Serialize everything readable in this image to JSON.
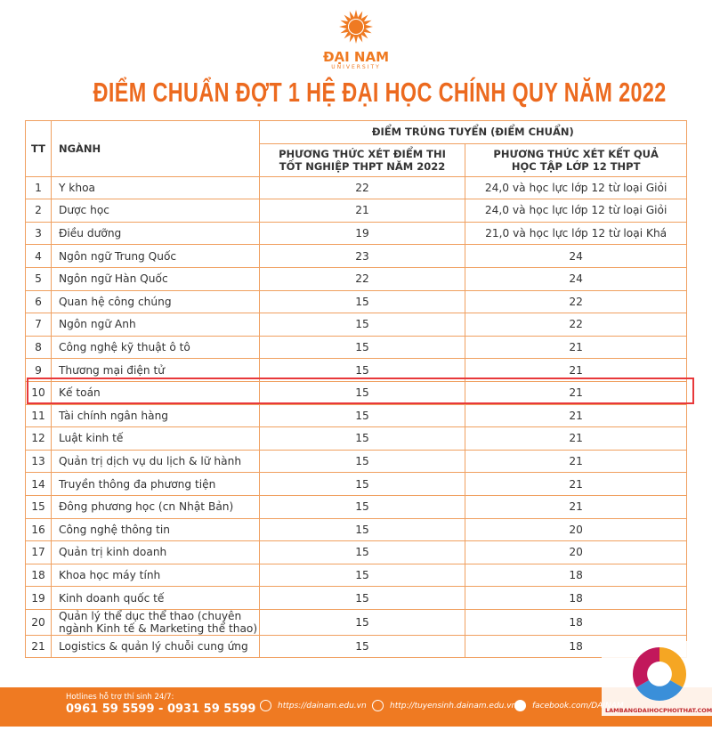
{
  "logo": {
    "name": "ĐẠI NAM",
    "sub": "UNIVERSITY"
  },
  "title": "ĐIỂM CHUẨN ĐỢT 1 HỆ ĐẠI HỌC CHÍNH QUY NĂM 2022",
  "table": {
    "headers": {
      "tt": "TT",
      "major": "NGÀNH",
      "group": "ĐIỂM TRÚNG TUYỂN (ĐIỂM CHUẨN)",
      "col1": [
        "PHƯƠNG THỨC XÉT ĐIỂM THI",
        "TỐT NGHIỆP THPT NĂM 2022"
      ],
      "col2": [
        "PHƯƠNG THỨC XÉT KẾT QUẢ",
        "HỌC TẬP LỚP 12 THPT"
      ]
    },
    "rows": [
      [
        "1",
        "Y khoa",
        "22",
        "24,0 và học lực lớp 12 từ loại Giỏi"
      ],
      [
        "2",
        "Dược học",
        "21",
        "24,0 và học lực lớp 12 từ loại Giỏi"
      ],
      [
        "3",
        "Điều dưỡng",
        "19",
        "21,0 và học lực lớp 12 từ loại Khá"
      ],
      [
        "4",
        "Ngôn ngữ Trung Quốc",
        "23",
        "24"
      ],
      [
        "5",
        "Ngôn ngữ Hàn Quốc",
        "22",
        "24"
      ],
      [
        "6",
        "Quan hệ công chúng",
        "15",
        "22"
      ],
      [
        "7",
        "Ngôn ngữ Anh",
        "15",
        "22"
      ],
      [
        "8",
        "Công nghệ kỹ thuật ô tô",
        "15",
        "21"
      ],
      [
        "9",
        "Thương mại điện tử",
        "15",
        "21"
      ],
      [
        "10",
        "Kế toán",
        "15",
        "21"
      ],
      [
        "11",
        "Tài chính ngân hàng",
        "15",
        "21"
      ],
      [
        "12",
        "Luật kinh tế",
        "15",
        "21"
      ],
      [
        "13",
        "Quản trị dịch vụ du lịch & lữ hành",
        "15",
        "21"
      ],
      [
        "14",
        "Truyền thông đa phương tiện",
        "15",
        "21"
      ],
      [
        "15",
        "Đông phương học (cn Nhật Bản)",
        "15",
        "21"
      ],
      [
        "16",
        "Công nghệ thông tin",
        "15",
        "20"
      ],
      [
        "17",
        "Quản trị kinh doanh",
        "15",
        "20"
      ],
      [
        "18",
        "Khoa học máy tính",
        "15",
        "18"
      ],
      [
        "19",
        "Kinh doanh quốc tế",
        "15",
        "18"
      ],
      [
        "20",
        "Quản lý thể dục thể thao (chuyên ngành Kinh tế & Marketing thể thao)",
        "15",
        "18"
      ],
      [
        "21",
        "Logistics & quản lý chuỗi cung ứng",
        "15",
        "18"
      ]
    ]
  },
  "footer": {
    "hotline_label": "Hotlines hỗ trợ thí sinh 24/7:",
    "hotlines": "0961 59 5599 - 0931 59 5599",
    "links": [
      "https://dainam.edu.vn",
      "http://tuyensinh.dainam.edu.vn",
      "facebook.com/DAINAM"
    ]
  },
  "watermark": "LAMBANGDAIHOCPHOITHAT.COM"
}
